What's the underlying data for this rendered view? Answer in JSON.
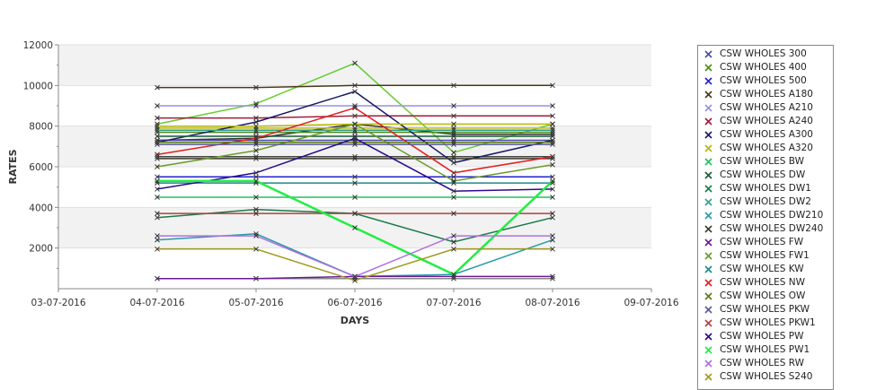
{
  "chart_data": {
    "type": "line",
    "xlabel": "DAYS",
    "ylabel": "RATES",
    "x_ticks": [
      "03-07-2016",
      "04-07-2016",
      "05-07-2016",
      "06-07-2016",
      "07-07-2016",
      "08-07-2016",
      "09-07-2016"
    ],
    "x": [
      "04-07-2016",
      "05-07-2016",
      "06-07-2016",
      "07-07-2016",
      "08-07-2016"
    ],
    "ylim": [
      0,
      12000
    ],
    "y_ticks": [
      2000,
      4000,
      6000,
      8000,
      10000,
      12000
    ],
    "grid": true,
    "legend_position": "right",
    "series": [
      {
        "name": "CSW WHOLES 300",
        "color": "#4a4aa8",
        "values": [
          7300,
          7300,
          7300,
          7300,
          7300
        ]
      },
      {
        "name": "CSW WHOLES 400",
        "color": "#4c8a18",
        "values": [
          7700,
          7700,
          7700,
          7700,
          7700
        ]
      },
      {
        "name": "CSW WHOLES 500",
        "color": "#2222cc",
        "values": [
          5500,
          5500,
          5500,
          5500,
          5500
        ]
      },
      {
        "name": "CSW WHOLES A180",
        "color": "#4a3a1a",
        "values": [
          9900,
          9900,
          10000,
          10000,
          10000
        ]
      },
      {
        "name": "CSW WHOLES A210",
        "color": "#9a90e0",
        "values": [
          9000,
          9000,
          9000,
          9000,
          9000
        ]
      },
      {
        "name": "CSW WHOLES A240",
        "color": "#a01e3c",
        "values": [
          8400,
          8400,
          8500,
          8500,
          8500
        ]
      },
      {
        "name": "CSW WHOLES A300",
        "color": "#1a1a66",
        "values": [
          7200,
          8200,
          9700,
          6200,
          7300
        ]
      },
      {
        "name": "CSW WHOLES A320",
        "color": "#b8b800",
        "values": [
          8000,
          8000,
          8100,
          8100,
          8100
        ]
      },
      {
        "name": "CSW WHOLES BW",
        "color": "#20c060",
        "values": [
          4500,
          4500,
          4500,
          4500,
          4500
        ]
      },
      {
        "name": "CSW WHOLES DW",
        "color": "#1a5a3a",
        "values": [
          7500,
          7500,
          7500,
          7500,
          7500
        ]
      },
      {
        "name": "CSW WHOLES DW1",
        "color": "#1a7a4a",
        "values": [
          3500,
          3900,
          3700,
          2300,
          3500
        ]
      },
      {
        "name": "CSW WHOLES DW2",
        "color": "#30a090",
        "values": [
          7800,
          7800,
          7800,
          7800,
          7800
        ]
      },
      {
        "name": "CSW WHOLES DW210",
        "color": "#2a9aa8",
        "values": [
          2400,
          2700,
          600,
          700,
          2400
        ]
      },
      {
        "name": "CSW WHOLES DW240",
        "color": "#3a3a2a",
        "values": [
          6400,
          6400,
          6400,
          6400,
          6400
        ]
      },
      {
        "name": "CSW WHOLES FW",
        "color": "#6a1a9a",
        "values": [
          500,
          500,
          600,
          600,
          600
        ]
      },
      {
        "name": "CSW WHOLES FW1",
        "color": "#6a9a2a",
        "values": [
          6000,
          6800,
          8100,
          5300,
          6100
        ]
      },
      {
        "name": "CSW WHOLES KW",
        "color": "#208a8a",
        "values": [
          5200,
          5200,
          5200,
          5200,
          5200
        ]
      },
      {
        "name": "CSW WHOLES NW",
        "color": "#e02020",
        "values": [
          6600,
          7400,
          8900,
          5700,
          6500
        ]
      },
      {
        "name": "CSW WHOLES OW",
        "color": "#5a7a10",
        "values": [
          7200,
          7200,
          7200,
          7200,
          7200
        ]
      },
      {
        "name": "CSW WHOLES PKW",
        "color": "#5a5a9a",
        "values": [
          7100,
          7100,
          7100,
          7100,
          7100
        ]
      },
      {
        "name": "CSW WHOLES PKW1",
        "color": "#b04040",
        "values": [
          3700,
          3700,
          3700,
          3700,
          3700
        ]
      },
      {
        "name": "CSW WHOLES PW",
        "color": "#2a0a8a",
        "values": [
          4900,
          5700,
          7400,
          4800,
          4900
        ]
      },
      {
        "name": "CSW WHOLES PW1",
        "color": "#22ee44",
        "values": [
          5300,
          5300,
          3000,
          700,
          5300
        ]
      },
      {
        "name": "CSW WHOLES RW",
        "color": "#b070e0",
        "values": [
          2600,
          2600,
          600,
          2600,
          2600
        ]
      },
      {
        "name": "CSW WHOLES S240",
        "color": "#a09a20",
        "values": [
          1950,
          1950,
          400,
          1950,
          1950
        ]
      }
    ],
    "extra_lines_not_in_visible_legend": [
      {
        "color": "#66cc33",
        "values": [
          8100,
          9100,
          11100,
          6700,
          8100
        ]
      },
      {
        "color": "#333333",
        "values": [
          7300,
          7400,
          8100,
          7600,
          7600
        ]
      },
      {
        "color": "#c0c020",
        "values": [
          7900,
          7900,
          7900,
          7900,
          7900
        ]
      },
      {
        "color": "#444444",
        "values": [
          6500,
          6500,
          6500,
          6500,
          6500
        ]
      },
      {
        "color": "#8a8a8a",
        "values": [
          500,
          500,
          500,
          500,
          500
        ]
      }
    ]
  }
}
